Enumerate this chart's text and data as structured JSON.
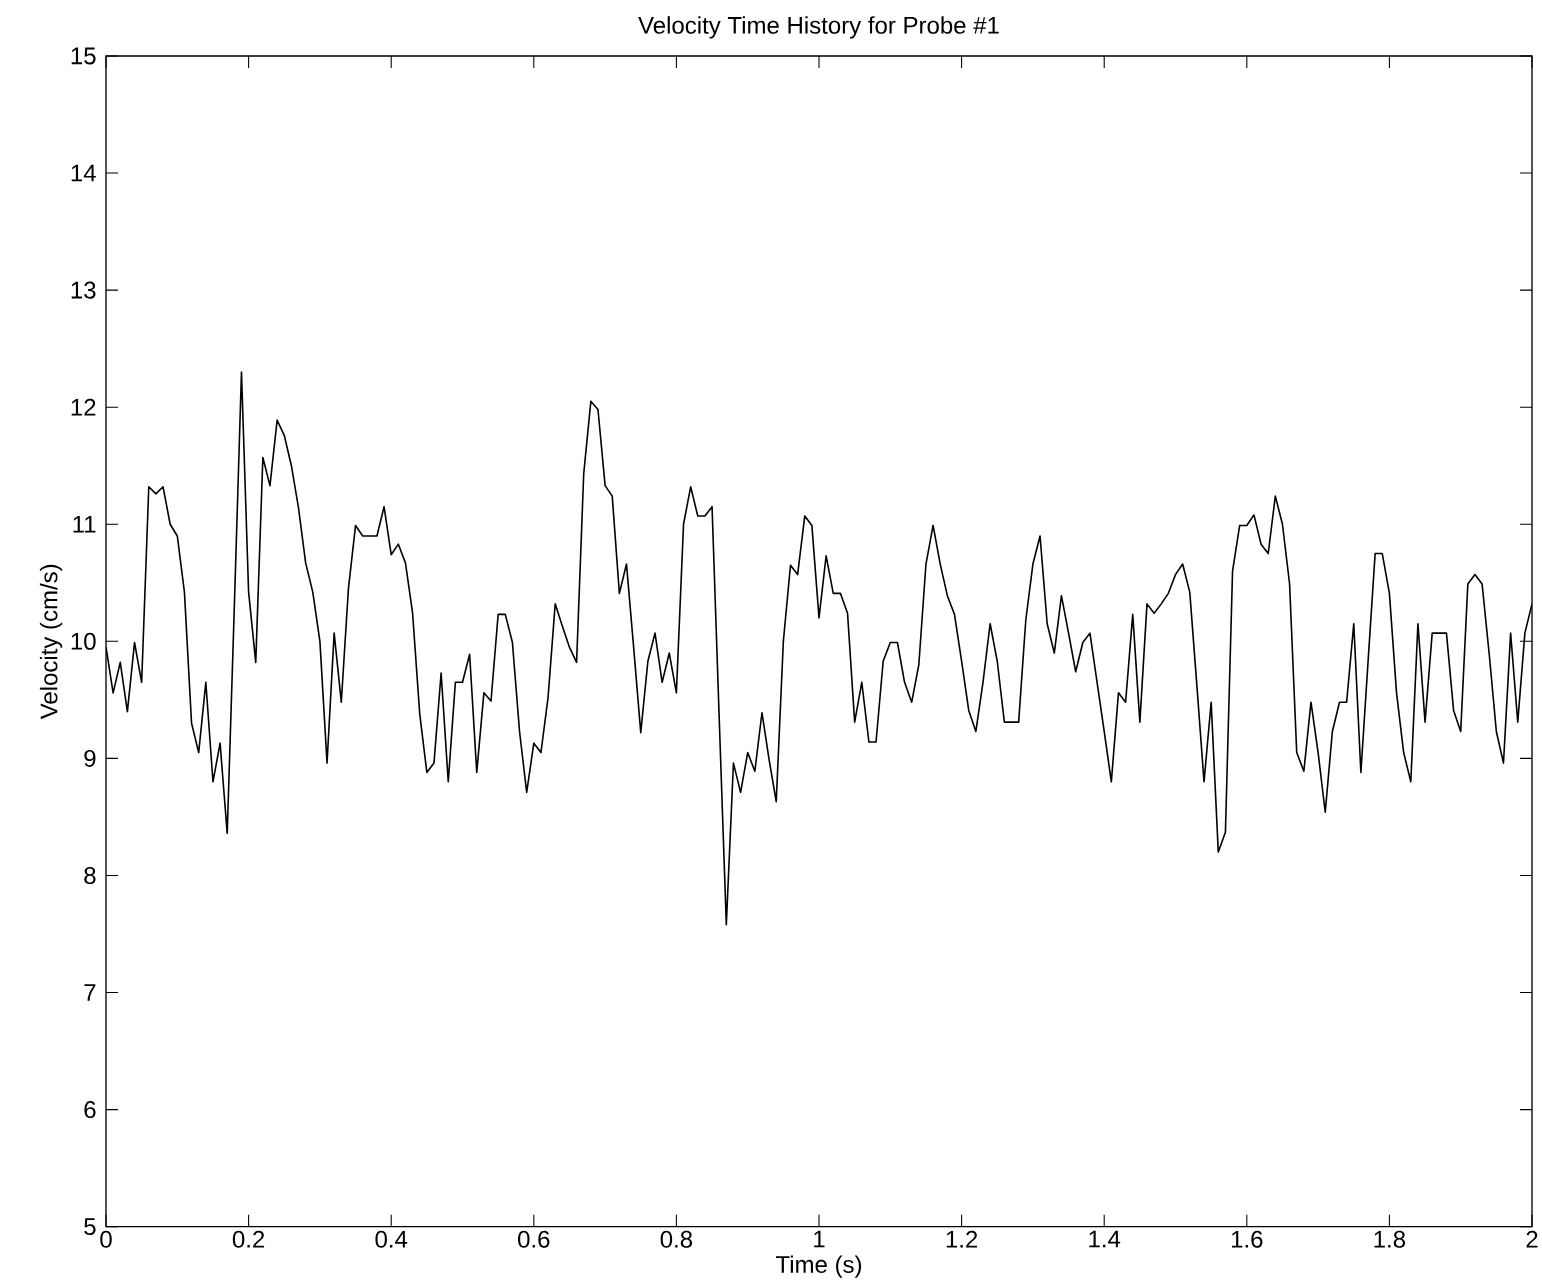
{
  "chart_data": {
    "type": "line",
    "title": "Velocity Time History for Probe #1",
    "xlabel": "Time (s)",
    "ylabel": "Velocity (cm/s)",
    "xlim": [
      0,
      2
    ],
    "ylim": [
      5,
      15
    ],
    "xticks": [
      0,
      0.2,
      0.4,
      0.6,
      0.8,
      1,
      1.2,
      1.4,
      1.6,
      1.8,
      2
    ],
    "yticks": [
      5,
      6,
      7,
      8,
      9,
      10,
      11,
      12,
      13,
      14,
      15
    ],
    "x": [
      0,
      0.01,
      0.02,
      0.03,
      0.04,
      0.05,
      0.06,
      0.07,
      0.08,
      0.09,
      0.1,
      0.11,
      0.12,
      0.13,
      0.14,
      0.15,
      0.16,
      0.17,
      0.18,
      0.19,
      0.2,
      0.21,
      0.22,
      0.23,
      0.24,
      0.25,
      0.26,
      0.27,
      0.28,
      0.29,
      0.3,
      0.31,
      0.32,
      0.33,
      0.34,
      0.35,
      0.36,
      0.37,
      0.38,
      0.39,
      0.4,
      0.41,
      0.42,
      0.43,
      0.44,
      0.45,
      0.46,
      0.47,
      0.48,
      0.49,
      0.5,
      0.51,
      0.52,
      0.53,
      0.54,
      0.55,
      0.56,
      0.57,
      0.58,
      0.59,
      0.6,
      0.61,
      0.62,
      0.63,
      0.64,
      0.65,
      0.66,
      0.67,
      0.68,
      0.69,
      0.7,
      0.71,
      0.72,
      0.73,
      0.74,
      0.75,
      0.76,
      0.77,
      0.78,
      0.79,
      0.8,
      0.81,
      0.82,
      0.83,
      0.84,
      0.85,
      0.86,
      0.87,
      0.88,
      0.89,
      0.9,
      0.91,
      0.92,
      0.93,
      0.94,
      0.95,
      0.96,
      0.97,
      0.98,
      0.99,
      1,
      1.01,
      1.02,
      1.03,
      1.04,
      1.05,
      1.06,
      1.07,
      1.08,
      1.09,
      1.1,
      1.11,
      1.12,
      1.13,
      1.14,
      1.15,
      1.16,
      1.17,
      1.18,
      1.19,
      1.2,
      1.21,
      1.22,
      1.23,
      1.24,
      1.25,
      1.26,
      1.27,
      1.28,
      1.29,
      1.3,
      1.31,
      1.32,
      1.33,
      1.34,
      1.35,
      1.36,
      1.37,
      1.38,
      1.39,
      1.4,
      1.41,
      1.42,
      1.43,
      1.44,
      1.45,
      1.46,
      1.47,
      1.48,
      1.49,
      1.5,
      1.51,
      1.52,
      1.53,
      1.54,
      1.55,
      1.56,
      1.57,
      1.58,
      1.59,
      1.6,
      1.61,
      1.62,
      1.63,
      1.64,
      1.65,
      1.66,
      1.67,
      1.68,
      1.69,
      1.7,
      1.71,
      1.72,
      1.73,
      1.74,
      1.75,
      1.76,
      1.77,
      1.78,
      1.79,
      1.8,
      1.81,
      1.82,
      1.83,
      1.84,
      1.85,
      1.86,
      1.87,
      1.88,
      1.89,
      1.9,
      1.91,
      1.92,
      1.93,
      1.94,
      1.95,
      1.96,
      1.97,
      1.98,
      1.99,
      2
    ],
    "series": [
      {
        "color": "#000000",
        "values": [
          9.95,
          9.56,
          9.82,
          9.4,
          9.99,
          9.65,
          11.32,
          11.26,
          11.32,
          11.0,
          10.9,
          10.42,
          9.3,
          9.05,
          9.65,
          8.8,
          9.13,
          8.36,
          10.3,
          12.3,
          10.42,
          9.82,
          11.57,
          11.33,
          11.89,
          11.76,
          11.5,
          11.14,
          10.67,
          10.42,
          10.0,
          8.96,
          10.07,
          9.48,
          10.45,
          10.99,
          10.9,
          10.9,
          10.9,
          11.15,
          10.74,
          10.83,
          10.67,
          10.24,
          9.38,
          8.88,
          8.96,
          9.73,
          8.8,
          9.65,
          9.65,
          9.89,
          8.88,
          9.56,
          9.49,
          10.23,
          10.23,
          9.99,
          9.23,
          8.71,
          9.13,
          9.05,
          9.52,
          10.32,
          10.13,
          9.95,
          9.82,
          11.43,
          12.05,
          11.98,
          11.33,
          11.24,
          10.41,
          10.66,
          9.95,
          9.22,
          9.83,
          10.07,
          9.65,
          9.9,
          9.56,
          11.0,
          11.32,
          11.07,
          11.07,
          11.15,
          9.35,
          7.58,
          8.96,
          8.71,
          9.05,
          8.89,
          9.39,
          8.99,
          8.63,
          10.0,
          10.65,
          10.57,
          11.07,
          10.99,
          10.2,
          10.73,
          10.41,
          10.41,
          10.24,
          9.31,
          9.65,
          9.14,
          9.14,
          9.83,
          9.99,
          9.99,
          9.65,
          9.48,
          9.8,
          10.66,
          10.99,
          10.66,
          10.39,
          10.23,
          9.83,
          9.41,
          9.23,
          9.65,
          10.15,
          9.83,
          9.31,
          9.31,
          9.31,
          10.18,
          10.66,
          10.9,
          10.15,
          9.9,
          10.39,
          10.07,
          9.74,
          9.99,
          10.07,
          9.65,
          9.23,
          8.8,
          9.56,
          9.48,
          10.23,
          9.31,
          10.32,
          10.24,
          10.32,
          10.41,
          10.57,
          10.66,
          10.42,
          9.62,
          8.8,
          9.48,
          8.2,
          8.37,
          10.6,
          10.99,
          10.99,
          11.08,
          10.83,
          10.75,
          11.24,
          11.0,
          10.49,
          9.05,
          8.89,
          9.48,
          9.05,
          8.54,
          9.23,
          9.48,
          9.48,
          10.15,
          8.88,
          9.82,
          10.75,
          10.75,
          10.41,
          9.56,
          9.05,
          8.8,
          10.15,
          9.31,
          10.07,
          10.07,
          10.07,
          9.41,
          9.23,
          10.49,
          10.57,
          10.49,
          9.89,
          9.23,
          8.96,
          10.07,
          9.31,
          10.07,
          10.32
        ]
      }
    ]
  }
}
